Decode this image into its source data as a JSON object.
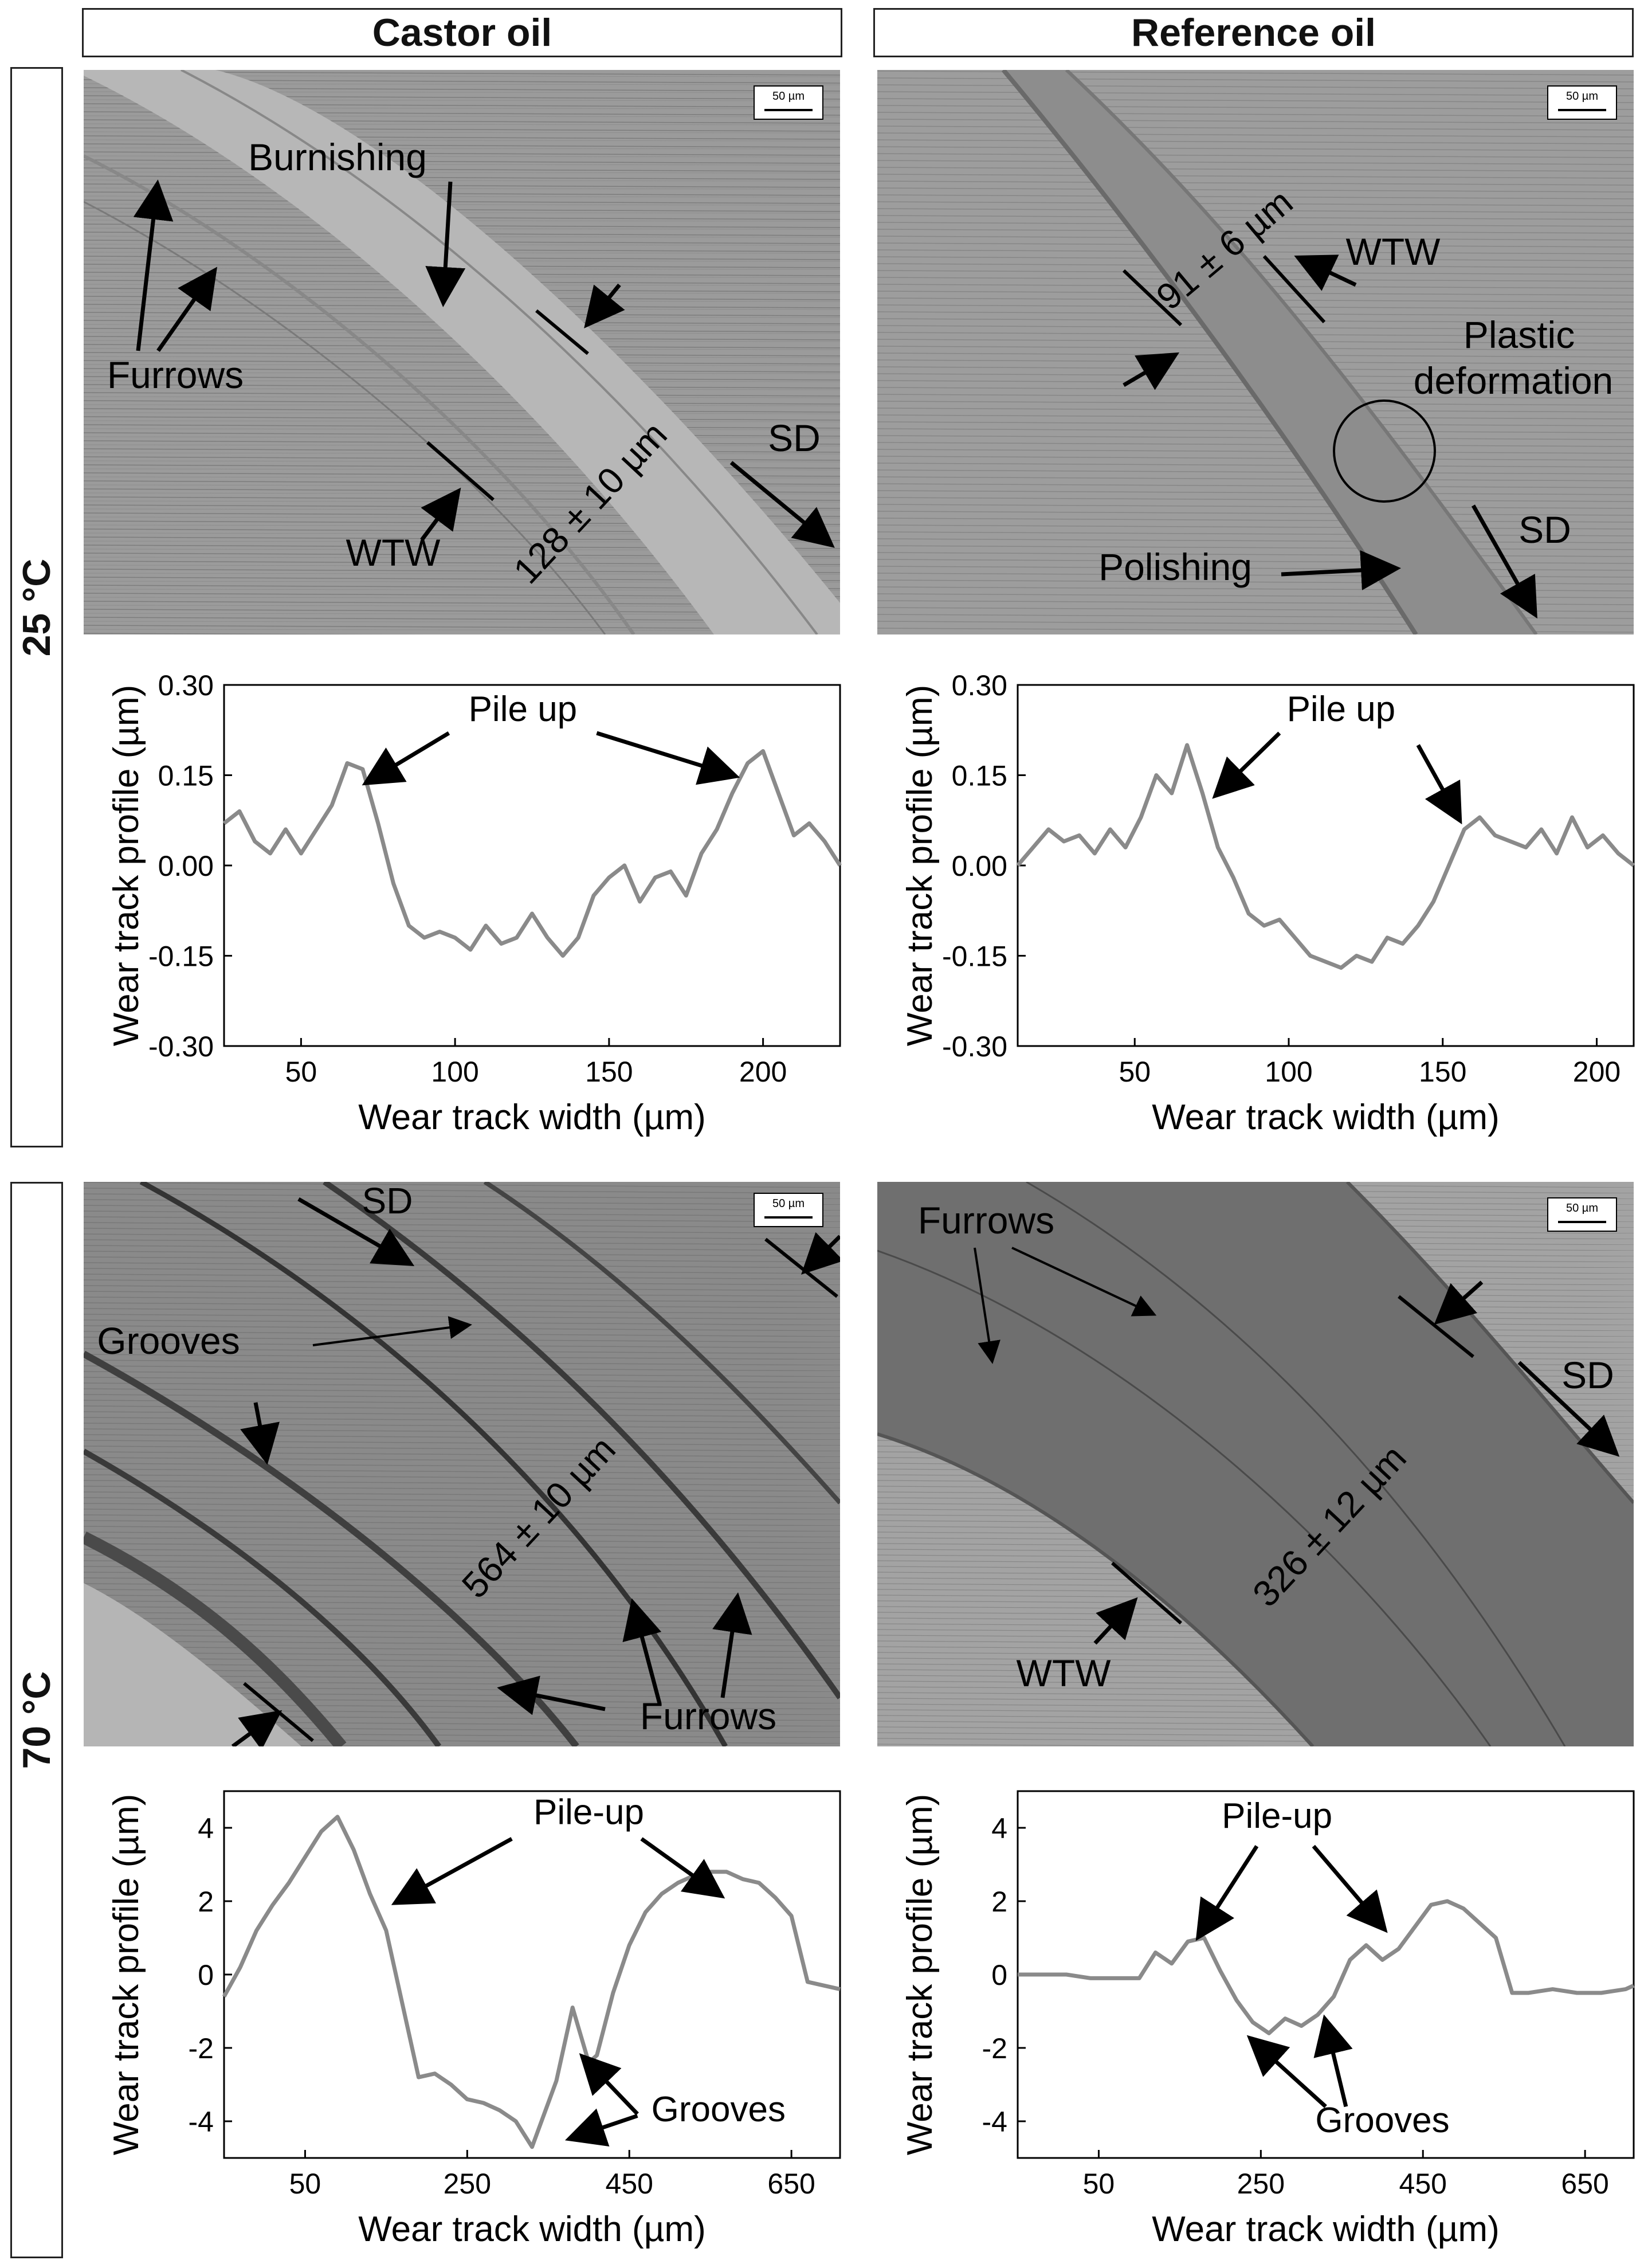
{
  "columns": [
    "Castor oil",
    "Reference oil"
  ],
  "rows": [
    "25 °C",
    "70 °C"
  ],
  "micrographs": [
    {
      "id": "castor-25",
      "scalebar": "50 µm",
      "labels": {
        "burnishing": "Burnishing",
        "furrows": "Furrows",
        "width": "128 ± 10 µm",
        "wtw": "WTW",
        "sd": "SD"
      }
    },
    {
      "id": "reference-25",
      "scalebar": "50 µm",
      "labels": {
        "width": "91 ± 6 µm",
        "wtw": "WTW",
        "plastic1": "Plastic",
        "plastic2": "deformation",
        "polishing": "Polishing",
        "sd": "SD"
      }
    },
    {
      "id": "castor-70",
      "scalebar": "50 µm",
      "labels": {
        "sd": "SD",
        "grooves": "Grooves",
        "width": "564 ± 10 µm",
        "furrows": "Furrows"
      }
    },
    {
      "id": "reference-70",
      "scalebar": "50 µm",
      "labels": {
        "furrows": "Furrows",
        "sd": "SD",
        "width": "326 ± 12 µm",
        "wtw": "WTW"
      }
    }
  ],
  "chart_data": [
    {
      "type": "line",
      "panel": "Castor oil, 25 °C",
      "xlabel": "Wear track width (µm)",
      "ylabel": "Wear track profile (µm)",
      "xlim": [
        25,
        225
      ],
      "ylim": [
        -0.3,
        0.3
      ],
      "xticks": [
        50,
        100,
        150,
        200
      ],
      "yticks": [
        -0.3,
        -0.15,
        0.0,
        0.15,
        0.3
      ],
      "ytick_labels": [
        "-0.30",
        "-0.15",
        "0.00",
        "0.15",
        "0.30"
      ],
      "annotations": [
        "Pile up"
      ],
      "x": [
        25,
        30,
        35,
        40,
        45,
        50,
        55,
        60,
        65,
        70,
        75,
        80,
        85,
        90,
        95,
        100,
        105,
        110,
        115,
        120,
        125,
        130,
        135,
        140,
        145,
        150,
        155,
        160,
        165,
        170,
        175,
        180,
        185,
        190,
        195,
        200,
        205,
        210,
        215,
        220,
        225
      ],
      "values": [
        0.07,
        0.09,
        0.04,
        0.02,
        0.06,
        0.02,
        0.06,
        0.1,
        0.17,
        0.16,
        0.07,
        -0.03,
        -0.1,
        -0.12,
        -0.11,
        -0.12,
        -0.14,
        -0.1,
        -0.13,
        -0.12,
        -0.08,
        -0.12,
        -0.15,
        -0.12,
        -0.05,
        -0.02,
        0.0,
        -0.06,
        -0.02,
        -0.01,
        -0.05,
        0.02,
        0.06,
        0.12,
        0.17,
        0.19,
        0.12,
        0.05,
        0.07,
        0.04,
        0.0
      ]
    },
    {
      "type": "line",
      "panel": "Reference oil, 25 °C",
      "xlabel": "Wear track width (µm)",
      "ylabel": "Wear track profile (µm)",
      "xlim": [
        12,
        212
      ],
      "ylim": [
        -0.3,
        0.3
      ],
      "xticks": [
        50,
        100,
        150,
        200
      ],
      "yticks": [
        -0.3,
        -0.15,
        0.0,
        0.15,
        0.3
      ],
      "ytick_labels": [
        "-0.30",
        "-0.15",
        "0.00",
        "0.15",
        "0.30"
      ],
      "annotations": [
        "Pile up"
      ],
      "x": [
        12,
        17,
        22,
        27,
        32,
        37,
        42,
        47,
        52,
        57,
        62,
        67,
        72,
        77,
        82,
        87,
        92,
        97,
        102,
        107,
        112,
        117,
        122,
        127,
        132,
        137,
        142,
        147,
        152,
        157,
        162,
        167,
        172,
        177,
        182,
        187,
        192,
        197,
        202,
        207,
        212
      ],
      "values": [
        0.0,
        0.03,
        0.06,
        0.04,
        0.05,
        0.02,
        0.06,
        0.03,
        0.08,
        0.15,
        0.12,
        0.2,
        0.12,
        0.03,
        -0.02,
        -0.08,
        -0.1,
        -0.09,
        -0.12,
        -0.15,
        -0.16,
        -0.17,
        -0.15,
        -0.16,
        -0.12,
        -0.13,
        -0.1,
        -0.06,
        0.0,
        0.06,
        0.08,
        0.05,
        0.04,
        0.03,
        0.06,
        0.02,
        0.08,
        0.03,
        0.05,
        0.02,
        0.0
      ]
    },
    {
      "type": "line",
      "panel": "Castor oil, 70 °C",
      "xlabel": "Wear track width (µm)",
      "ylabel": "Wear track profile (µm)",
      "xlim": [
        -50,
        710
      ],
      "ylim": [
        -5,
        5
      ],
      "xticks": [
        50,
        250,
        450,
        650
      ],
      "yticks": [
        -4,
        -2,
        0,
        2,
        4
      ],
      "annotations": [
        "Pile-up",
        "Grooves"
      ],
      "x": [
        -50,
        -30,
        -10,
        10,
        30,
        50,
        70,
        90,
        110,
        130,
        150,
        170,
        190,
        210,
        230,
        250,
        270,
        290,
        310,
        330,
        345,
        360,
        380,
        400,
        410,
        430,
        450,
        470,
        490,
        510,
        530,
        550,
        570,
        590,
        610,
        630,
        650,
        670,
        690,
        710
      ],
      "values": [
        -0.6,
        0.2,
        1.2,
        1.9,
        2.5,
        3.2,
        3.9,
        4.3,
        3.4,
        2.2,
        1.2,
        -0.8,
        -2.8,
        -2.7,
        -3.0,
        -3.4,
        -3.5,
        -3.7,
        -4.0,
        -4.7,
        -3.8,
        -2.9,
        -0.9,
        -2.4,
        -2.2,
        -0.5,
        0.8,
        1.7,
        2.2,
        2.5,
        2.7,
        2.8,
        2.8,
        2.6,
        2.5,
        2.1,
        1.6,
        -0.2,
        -0.3,
        -0.4
      ]
    },
    {
      "type": "line",
      "panel": "Reference oil, 70 °C",
      "xlabel": "Wear track width (µm)",
      "ylabel": "Wear track profile (µm)",
      "xlim": [
        -50,
        710
      ],
      "ylim": [
        -5,
        5
      ],
      "xticks": [
        50,
        250,
        450,
        650
      ],
      "yticks": [
        -4,
        -2,
        0,
        2,
        4
      ],
      "annotations": [
        "Pile-up",
        "Grooves"
      ],
      "x": [
        -50,
        -20,
        10,
        40,
        70,
        100,
        120,
        140,
        160,
        180,
        200,
        220,
        240,
        260,
        280,
        300,
        320,
        340,
        360,
        380,
        400,
        420,
        440,
        460,
        480,
        500,
        520,
        540,
        560,
        580,
        610,
        640,
        670,
        700,
        710
      ],
      "values": [
        0.0,
        0.0,
        0.0,
        -0.1,
        -0.1,
        -0.1,
        0.6,
        0.3,
        0.9,
        1.0,
        0.1,
        -0.7,
        -1.3,
        -1.6,
        -1.2,
        -1.4,
        -1.1,
        -0.6,
        0.4,
        0.8,
        0.4,
        0.7,
        1.3,
        1.9,
        2.0,
        1.8,
        1.4,
        1.0,
        -0.5,
        -0.5,
        -0.4,
        -0.5,
        -0.5,
        -0.4,
        -0.3
      ]
    }
  ]
}
